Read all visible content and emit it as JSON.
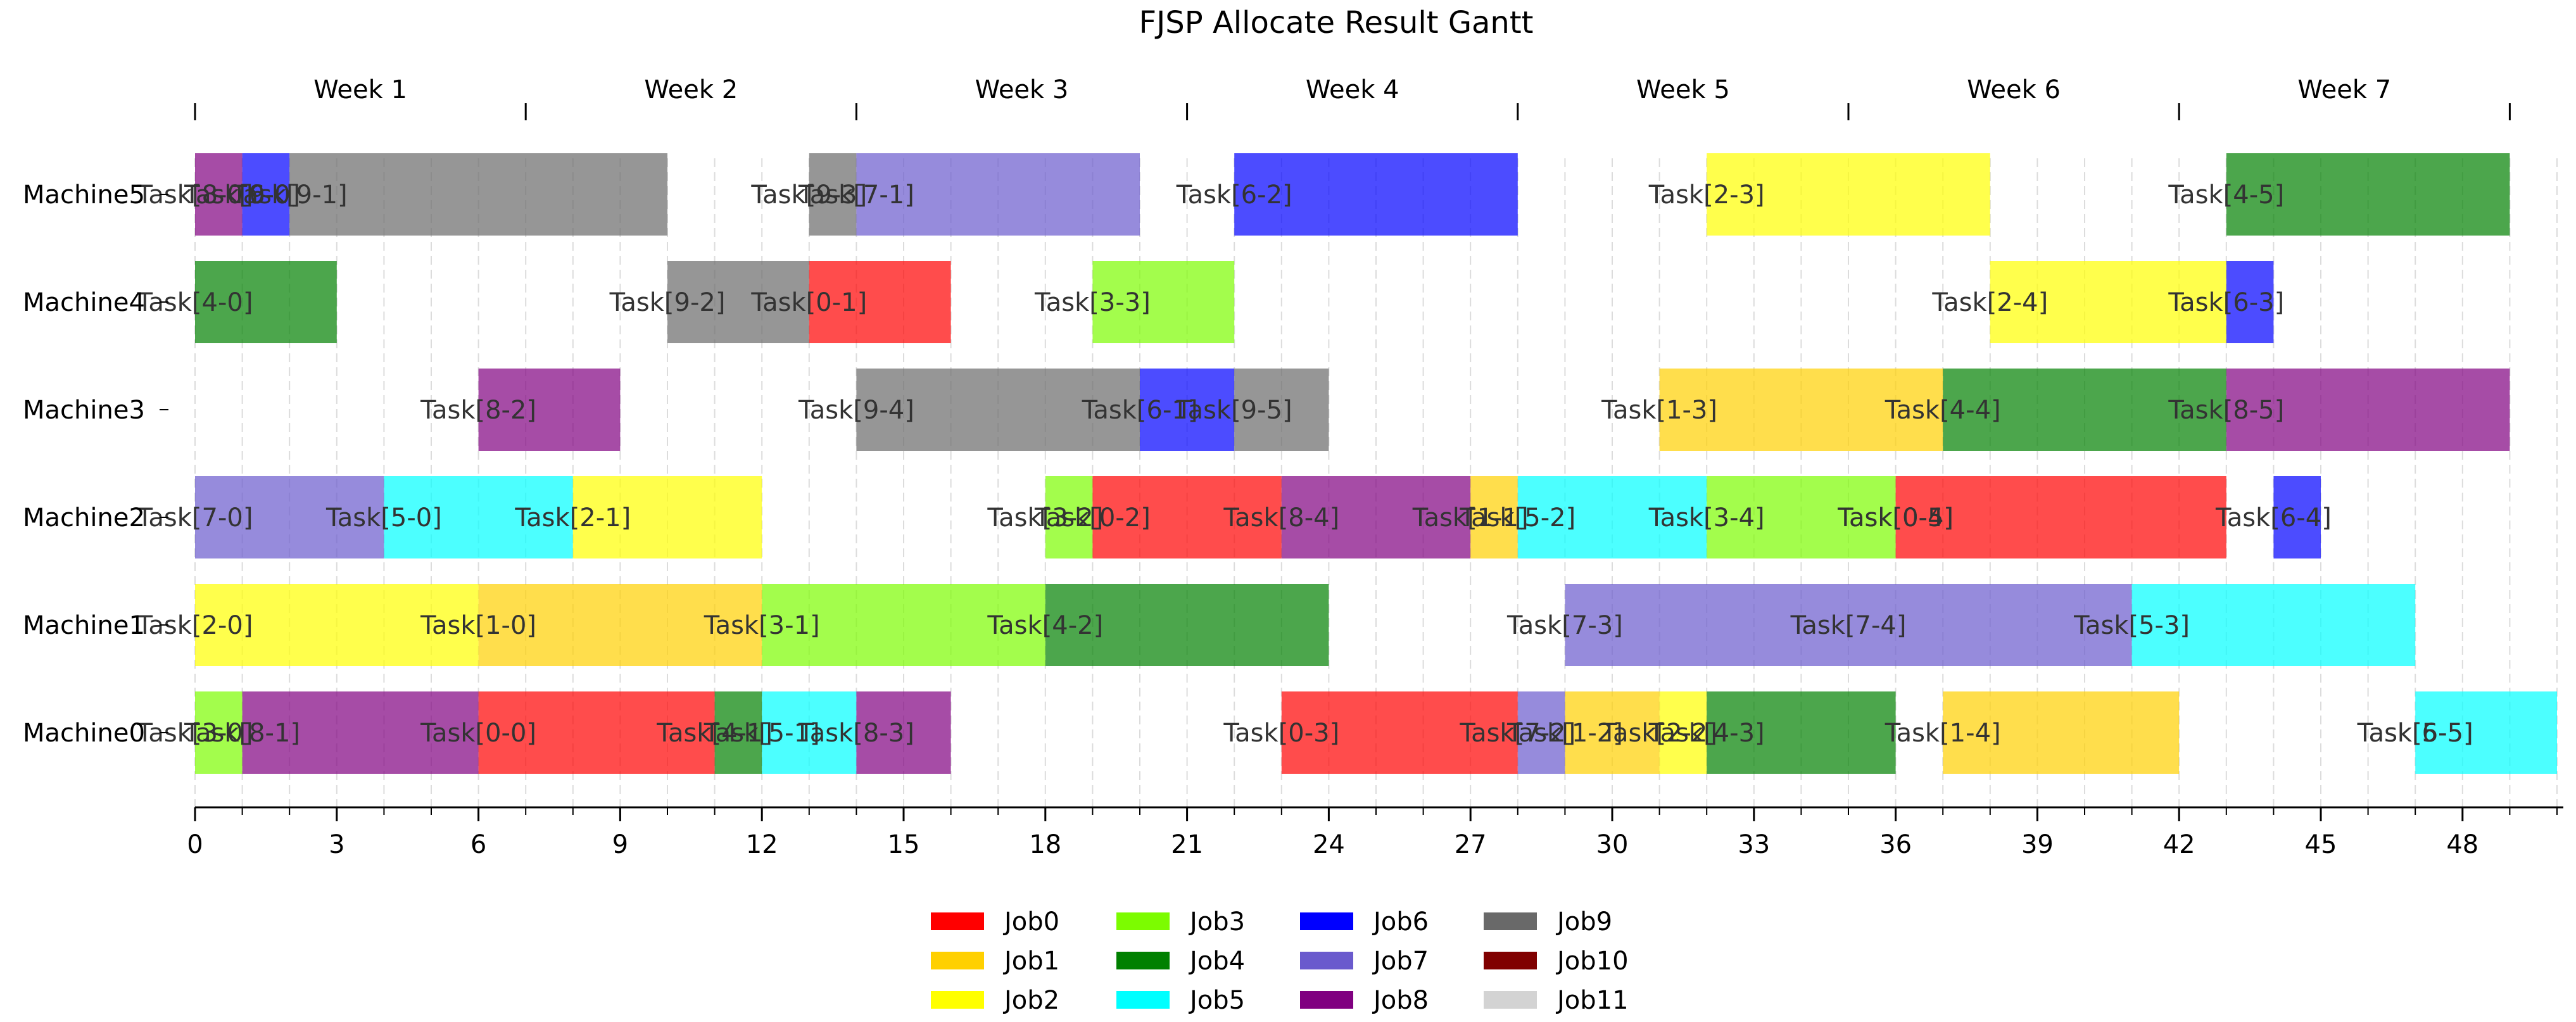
{
  "chart_data": {
    "type": "gantt",
    "title": "FJSP Allocate Result Gantt",
    "x_ticks": [
      0,
      3,
      6,
      9,
      12,
      15,
      18,
      21,
      24,
      27,
      30,
      33,
      36,
      39,
      42,
      45,
      48
    ],
    "xlim": [
      0,
      50
    ],
    "minor_grid": true,
    "weeks": [
      {
        "label": "Week 1",
        "start": 0,
        "end": 7
      },
      {
        "label": "Week 2",
        "start": 7,
        "end": 14
      },
      {
        "label": "Week 3",
        "start": 14,
        "end": 21
      },
      {
        "label": "Week 4",
        "start": 21,
        "end": 28
      },
      {
        "label": "Week 5",
        "start": 28,
        "end": 35
      },
      {
        "label": "Week 6",
        "start": 35,
        "end": 42
      },
      {
        "label": "Week 7",
        "start": 42,
        "end": 49
      }
    ],
    "machines": [
      "Machine5",
      "Machine4",
      "Machine3",
      "Machine2",
      "Machine1",
      "Machine0"
    ],
    "jobs": [
      {
        "name": "Job0",
        "color": "#ff0000"
      },
      {
        "name": "Job1",
        "color": "#ffd000"
      },
      {
        "name": "Job2",
        "color": "#ffff00"
      },
      {
        "name": "Job3",
        "color": "#7cfc00"
      },
      {
        "name": "Job4",
        "color": "#008000"
      },
      {
        "name": "Job5",
        "color": "#00ffff"
      },
      {
        "name": "Job6",
        "color": "#0000ff"
      },
      {
        "name": "Job7",
        "color": "#6a5acd"
      },
      {
        "name": "Job8",
        "color": "#800080"
      },
      {
        "name": "Job9",
        "color": "#696969"
      },
      {
        "name": "Job10",
        "color": "#800000"
      },
      {
        "name": "Job11",
        "color": "#d3d3d3"
      }
    ],
    "legend_position": "bottom-center",
    "tasks": [
      {
        "machine": "Machine5",
        "label": "Task[8-0]",
        "job": 8,
        "start": 0,
        "end": 1
      },
      {
        "machine": "Machine5",
        "label": "Task[6-0]",
        "job": 6,
        "start": 1,
        "end": 2
      },
      {
        "machine": "Machine5",
        "label": "Task[9-0]",
        "job": 9,
        "start": 1,
        "end": 1
      },
      {
        "machine": "Machine5",
        "label": "Task[9-1]",
        "job": 9,
        "start": 2,
        "end": 10
      },
      {
        "machine": "Machine5",
        "label": "Task[9-3]",
        "job": 9,
        "start": 13,
        "end": 14
      },
      {
        "machine": "Machine5",
        "label": "Task[7-1]",
        "job": 7,
        "start": 14,
        "end": 20
      },
      {
        "machine": "Machine5",
        "label": "Task[6-2]",
        "job": 6,
        "start": 22,
        "end": 28
      },
      {
        "machine": "Machine5",
        "label": "Task[2-3]",
        "job": 2,
        "start": 32,
        "end": 38
      },
      {
        "machine": "Machine5",
        "label": "Task[4-5]",
        "job": 4,
        "start": 43,
        "end": 49
      },
      {
        "machine": "Machine4",
        "label": "Task[4-0]",
        "job": 4,
        "start": 0,
        "end": 3
      },
      {
        "machine": "Machine4",
        "label": "Task[9-2]",
        "job": 9,
        "start": 10,
        "end": 13
      },
      {
        "machine": "Machine4",
        "label": "Task[0-1]",
        "job": 0,
        "start": 13,
        "end": 16
      },
      {
        "machine": "Machine4",
        "label": "Task[3-3]",
        "job": 3,
        "start": 19,
        "end": 22
      },
      {
        "machine": "Machine4",
        "label": "Task[2-4]",
        "job": 2,
        "start": 38,
        "end": 43
      },
      {
        "machine": "Machine4",
        "label": "Task[6-3]",
        "job": 6,
        "start": 43,
        "end": 44
      },
      {
        "machine": "Machine3",
        "label": "Task[8-2]",
        "job": 8,
        "start": 6,
        "end": 9
      },
      {
        "machine": "Machine3",
        "label": "Task[9-4]",
        "job": 9,
        "start": 14,
        "end": 20
      },
      {
        "machine": "Machine3",
        "label": "Task[6-1]",
        "job": 6,
        "start": 20,
        "end": 22
      },
      {
        "machine": "Machine3",
        "label": "Task[9-5]",
        "job": 9,
        "start": 22,
        "end": 24
      },
      {
        "machine": "Machine3",
        "label": "Task[1-3]",
        "job": 1,
        "start": 31,
        "end": 37
      },
      {
        "machine": "Machine3",
        "label": "Task[4-4]",
        "job": 4,
        "start": 37,
        "end": 43
      },
      {
        "machine": "Machine3",
        "label": "Task[8-5]",
        "job": 8,
        "start": 43,
        "end": 49
      },
      {
        "machine": "Machine2",
        "label": "Task[7-0]",
        "job": 7,
        "start": 0,
        "end": 4
      },
      {
        "machine": "Machine2",
        "label": "Task[5-0]",
        "job": 5,
        "start": 4,
        "end": 8
      },
      {
        "machine": "Machine2",
        "label": "Task[2-1]",
        "job": 2,
        "start": 8,
        "end": 12
      },
      {
        "machine": "Machine2",
        "label": "Task[3-2]",
        "job": 3,
        "start": 18,
        "end": 19
      },
      {
        "machine": "Machine2",
        "label": "Task[0-2]",
        "job": 0,
        "start": 19,
        "end": 23
      },
      {
        "machine": "Machine2",
        "label": "Task[8-4]",
        "job": 8,
        "start": 23,
        "end": 27
      },
      {
        "machine": "Machine2",
        "label": "Task[1-1]",
        "job": 1,
        "start": 27,
        "end": 28
      },
      {
        "machine": "Machine2",
        "label": "Task[5-2]",
        "job": 5,
        "start": 28,
        "end": 32
      },
      {
        "machine": "Machine2",
        "label": "Task[3-4]",
        "job": 3,
        "start": 32,
        "end": 36
      },
      {
        "machine": "Machine2",
        "label": "Task[0-4]",
        "job": 0,
        "start": 36,
        "end": 36
      },
      {
        "machine": "Machine2",
        "label": "Task[0-5]",
        "job": 0,
        "start": 36,
        "end": 43
      },
      {
        "machine": "Machine2",
        "label": "Task[6-4]",
        "job": 6,
        "start": 44,
        "end": 45
      },
      {
        "machine": "Machine1",
        "label": "Task[2-0]",
        "job": 2,
        "start": 0,
        "end": 6
      },
      {
        "machine": "Machine1",
        "label": "Task[1-0]",
        "job": 1,
        "start": 6,
        "end": 12
      },
      {
        "machine": "Machine1",
        "label": "Task[3-1]",
        "job": 3,
        "start": 12,
        "end": 18
      },
      {
        "machine": "Machine1",
        "label": "Task[4-2]",
        "job": 4,
        "start": 18,
        "end": 24
      },
      {
        "machine": "Machine1",
        "label": "Task[7-3]",
        "job": 7,
        "start": 29,
        "end": 35
      },
      {
        "machine": "Machine1",
        "label": "Task[7-4]",
        "job": 7,
        "start": 35,
        "end": 41
      },
      {
        "machine": "Machine1",
        "label": "Task[5-3]",
        "job": 5,
        "start": 41,
        "end": 47
      },
      {
        "machine": "Machine0",
        "label": "Task[3-0]",
        "job": 3,
        "start": 0,
        "end": 1
      },
      {
        "machine": "Machine0",
        "label": "Task[8-1]",
        "job": 8,
        "start": 1,
        "end": 6
      },
      {
        "machine": "Machine0",
        "label": "Task[0-0]",
        "job": 0,
        "start": 6,
        "end": 11
      },
      {
        "machine": "Machine0",
        "label": "Task[4-1]",
        "job": 4,
        "start": 11,
        "end": 12
      },
      {
        "machine": "Machine0",
        "label": "Task[5-1]",
        "job": 5,
        "start": 12,
        "end": 14
      },
      {
        "machine": "Machine0",
        "label": "Task[8-3]",
        "job": 8,
        "start": 14,
        "end": 16
      },
      {
        "machine": "Machine0",
        "label": "Task[0-3]",
        "job": 0,
        "start": 23,
        "end": 28
      },
      {
        "machine": "Machine0",
        "label": "Task[7-2]",
        "job": 7,
        "start": 28,
        "end": 29
      },
      {
        "machine": "Machine0",
        "label": "Task[1-2]",
        "job": 1,
        "start": 29,
        "end": 31
      },
      {
        "machine": "Machine0",
        "label": "Task[2-2]",
        "job": 2,
        "start": 31,
        "end": 32
      },
      {
        "machine": "Machine0",
        "label": "Task[4-3]",
        "job": 4,
        "start": 32,
        "end": 36
      },
      {
        "machine": "Machine0",
        "label": "Task[1-4]",
        "job": 1,
        "start": 37,
        "end": 42
      },
      {
        "machine": "Machine0",
        "label": "Task[6-5]",
        "job": 6,
        "start": 47,
        "end": 47
      },
      {
        "machine": "Machine0",
        "label": "Task[5-5]",
        "job": 5,
        "start": 47,
        "end": 50
      }
    ]
  }
}
